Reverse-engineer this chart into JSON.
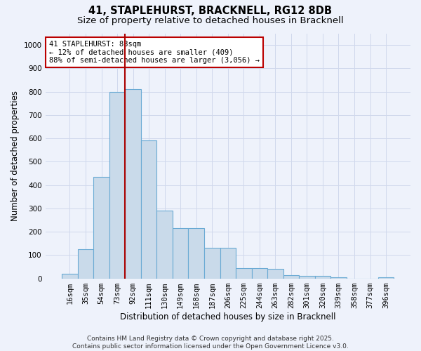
{
  "title_line1": "41, STAPLEHURST, BRACKNELL, RG12 8DB",
  "title_line2": "Size of property relative to detached houses in Bracknell",
  "xlabel": "Distribution of detached houses by size in Bracknell",
  "ylabel": "Number of detached properties",
  "categories": [
    "16sqm",
    "35sqm",
    "54sqm",
    "73sqm",
    "92sqm",
    "111sqm",
    "130sqm",
    "149sqm",
    "168sqm",
    "187sqm",
    "206sqm",
    "225sqm",
    "244sqm",
    "263sqm",
    "282sqm",
    "301sqm",
    "320sqm",
    "339sqm",
    "358sqm",
    "377sqm",
    "396sqm"
  ],
  "values": [
    20,
    125,
    435,
    800,
    810,
    590,
    290,
    215,
    215,
    130,
    130,
    45,
    45,
    40,
    15,
    10,
    10,
    5,
    0,
    0,
    5
  ],
  "bar_color": "#c9daea",
  "bar_edge_color": "#6aaad4",
  "grid_color": "#d0d8ec",
  "background_color": "#eef2fb",
  "vline_index": 4,
  "vline_color": "#aa0000",
  "annotation_text": "41 STAPLEHURST: 88sqm\n← 12% of detached houses are smaller (409)\n88% of semi-detached houses are larger (3,056) →",
  "annotation_box_color": "#ffffff",
  "annotation_box_edge": "#bb0000",
  "ylim": [
    0,
    1050
  ],
  "yticks": [
    0,
    100,
    200,
    300,
    400,
    500,
    600,
    700,
    800,
    900,
    1000
  ],
  "footnote": "Contains HM Land Registry data © Crown copyright and database right 2025.\nContains public sector information licensed under the Open Government Licence v3.0.",
  "title_fontsize": 10.5,
  "subtitle_fontsize": 9.5,
  "axis_label_fontsize": 8.5,
  "tick_fontsize": 7.5,
  "annotation_fontsize": 7.5,
  "footnote_fontsize": 6.5
}
